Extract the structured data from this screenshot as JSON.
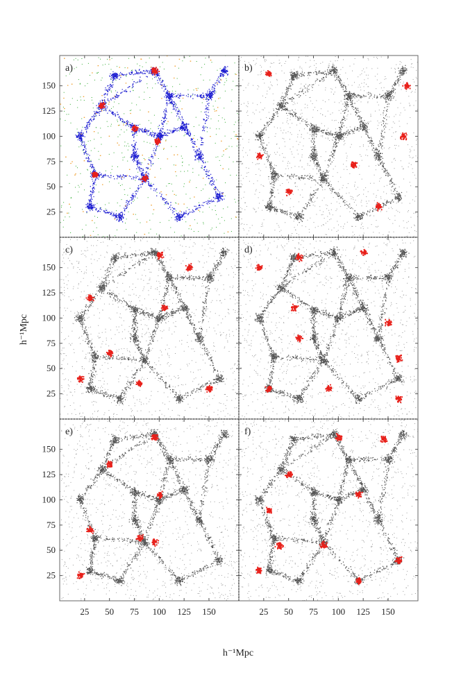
{
  "chart_data": {
    "type": "scatter",
    "layout": "3x2 panel grid of simulation slices",
    "xlabel": "h⁻¹Mpc",
    "ylabel": "h⁻¹Mpc",
    "xlim": [
      0,
      180
    ],
    "ylim": [
      0,
      180
    ],
    "x_ticks": [
      25,
      50,
      75,
      100,
      125,
      150
    ],
    "y_ticks": [
      25,
      50,
      75,
      100,
      125,
      150
    ],
    "background_points_color": "#555555",
    "highlight_color": "#e8201a",
    "panels": [
      {
        "label": "a)",
        "series": [
          {
            "color": "#1a1ad0",
            "role": "filaments"
          },
          {
            "color": "#2aa82a",
            "role": "walls"
          },
          {
            "color": "#f0a030",
            "role": "voids"
          },
          {
            "color": "#e8201a",
            "role": "clusters"
          }
        ],
        "highlight_centers": [
          [
            95,
            165
          ],
          [
            42,
            130
          ],
          [
            75,
            108
          ],
          [
            85,
            58
          ],
          [
            35,
            62
          ],
          [
            98,
            95
          ]
        ]
      },
      {
        "label": "b)",
        "highlight_centers": [
          [
            30,
            162
          ],
          [
            168,
            150
          ],
          [
            165,
            100
          ],
          [
            115,
            72
          ],
          [
            50,
            45
          ],
          [
            20,
            80
          ],
          [
            140,
            30
          ]
        ]
      },
      {
        "label": "c)",
        "highlight_centers": [
          [
            100,
            162
          ],
          [
            130,
            150
          ],
          [
            105,
            110
          ],
          [
            20,
            40
          ],
          [
            50,
            65
          ],
          [
            150,
            30
          ],
          [
            80,
            35
          ],
          [
            30,
            120
          ]
        ]
      },
      {
        "label": "d)",
        "highlight_centers": [
          [
            20,
            150
          ],
          [
            60,
            160
          ],
          [
            125,
            165
          ],
          [
            55,
            110
          ],
          [
            150,
            95
          ],
          [
            160,
            60
          ],
          [
            30,
            30
          ],
          [
            90,
            30
          ],
          [
            160,
            20
          ],
          [
            60,
            80
          ]
        ]
      },
      {
        "label": "e)",
        "highlight_centers": [
          [
            95,
            162
          ],
          [
            50,
            135
          ],
          [
            100,
            105
          ],
          [
            80,
            62
          ],
          [
            95,
            58
          ],
          [
            30,
            70
          ],
          [
            20,
            25
          ]
        ]
      },
      {
        "label": "f)",
        "highlight_centers": [
          [
            100,
            162
          ],
          [
            145,
            160
          ],
          [
            50,
            125
          ],
          [
            120,
            105
          ],
          [
            30,
            90
          ],
          [
            40,
            55
          ],
          [
            85,
            55
          ],
          [
            20,
            30
          ],
          [
            120,
            20
          ],
          [
            160,
            40
          ]
        ]
      }
    ]
  }
}
